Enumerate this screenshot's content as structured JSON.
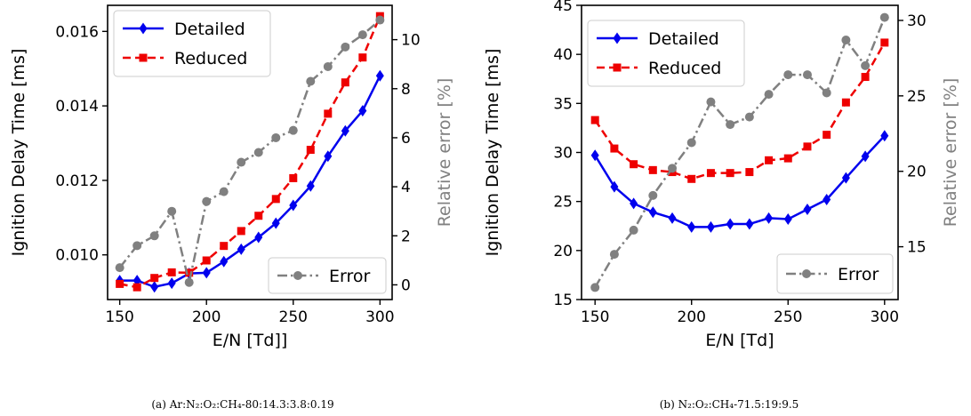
{
  "chart_data": [
    {
      "type": "line",
      "caption": "(a) Ar:N₂:O₂:CH₄-80:14.3:3.8:0.19",
      "xlabel": "E/N [Td]]",
      "ylabel": "Ignition Delay Time [ms]",
      "y2label": "Relative error [%]",
      "xlim": [
        143,
        307
      ],
      "ylim": [
        0.0088,
        0.0167
      ],
      "y2lim": [
        -0.6,
        11.4
      ],
      "xticks": [
        150,
        200,
        250,
        300
      ],
      "yticks": [
        0.01,
        0.012,
        0.014,
        0.016
      ],
      "ytick_labels": [
        "0.010",
        "0.012",
        "0.014",
        "0.016"
      ],
      "y2ticks": [
        0,
        2,
        4,
        6,
        8,
        10
      ],
      "x": [
        150,
        160,
        170,
        180,
        190,
        200,
        210,
        220,
        230,
        240,
        250,
        260,
        270,
        280,
        290,
        300
      ],
      "series": [
        {
          "name": "Detailed",
          "axis": "left",
          "color": "#0000ee",
          "marker": "diamond",
          "dash": "solid",
          "values": [
            0.00931,
            0.00931,
            0.00914,
            0.00924,
            0.0095,
            0.00952,
            0.00982,
            0.01015,
            0.01047,
            0.01085,
            0.01133,
            0.01185,
            0.01265,
            0.01333,
            0.01387,
            0.01481
          ]
        },
        {
          "name": "Reduced",
          "axis": "left",
          "color": "#ee0000",
          "marker": "square",
          "dash": "dashed",
          "values": [
            0.00922,
            0.00913,
            0.00938,
            0.00953,
            0.00952,
            0.00985,
            0.01024,
            0.01064,
            0.01105,
            0.0115,
            0.01206,
            0.01282,
            0.01379,
            0.01463,
            0.0153,
            0.01641
          ]
        },
        {
          "name": "Error",
          "axis": "right",
          "color": "#808080",
          "marker": "circle",
          "dash": "dashdot",
          "values": [
            0.7,
            1.6,
            2.0,
            3.0,
            0.1,
            3.4,
            3.8,
            5.0,
            5.4,
            6.0,
            6.3,
            8.3,
            8.9,
            9.7,
            10.2,
            10.8
          ]
        }
      ],
      "legend_top": {
        "entries": [
          "Detailed",
          "Reduced"
        ],
        "placement": "top-left"
      },
      "legend_bottom": {
        "entries": [
          "Error"
        ],
        "placement": "bottom-right"
      }
    },
    {
      "type": "line",
      "caption": "(b) N₂:O₂:CH₄-71.5:19:9.5",
      "xlabel": "E/N [Td]",
      "ylabel": "Ignition Delay Time [ms]",
      "y2label": "Relative error [%]",
      "xlim": [
        143,
        307
      ],
      "ylim": [
        15,
        45
      ],
      "y2lim": [
        11.5,
        31
      ],
      "xticks": [
        150,
        200,
        250,
        300
      ],
      "yticks": [
        15,
        20,
        25,
        30,
        35,
        40,
        45
      ],
      "ytick_labels": [
        "15",
        "20",
        "25",
        "30",
        "35",
        "40",
        "45"
      ],
      "y2ticks": [
        15,
        20,
        25,
        30
      ],
      "x": [
        150,
        160,
        170,
        180,
        190,
        200,
        210,
        220,
        230,
        240,
        250,
        260,
        270,
        280,
        290,
        300
      ],
      "series": [
        {
          "name": "Detailed",
          "axis": "left",
          "color": "#0000ee",
          "marker": "diamond",
          "dash": "solid",
          "values": [
            29.7,
            26.5,
            24.8,
            23.9,
            23.3,
            22.4,
            22.4,
            22.7,
            22.7,
            23.3,
            23.2,
            24.2,
            25.2,
            27.4,
            29.6,
            31.7
          ]
        },
        {
          "name": "Reduced",
          "axis": "left",
          "color": "#ee0000",
          "marker": "square",
          "dash": "dashed",
          "values": [
            33.3,
            30.4,
            28.8,
            28.2,
            28.0,
            27.3,
            27.9,
            27.9,
            28.0,
            29.2,
            29.4,
            30.6,
            31.8,
            35.1,
            37.7,
            41.2
          ]
        },
        {
          "name": "Error",
          "axis": "right",
          "color": "#808080",
          "marker": "circle",
          "dash": "dashdot",
          "values": [
            12.3,
            14.5,
            16.1,
            18.4,
            20.2,
            21.9,
            24.6,
            23.1,
            23.6,
            25.1,
            26.4,
            26.4,
            25.2,
            28.7,
            27.0,
            30.2
          ]
        }
      ],
      "legend_top": {
        "entries": [
          "Detailed",
          "Reduced"
        ],
        "placement": "top-left"
      },
      "legend_bottom": {
        "entries": [
          "Error"
        ],
        "placement": "bottom-right"
      }
    }
  ]
}
